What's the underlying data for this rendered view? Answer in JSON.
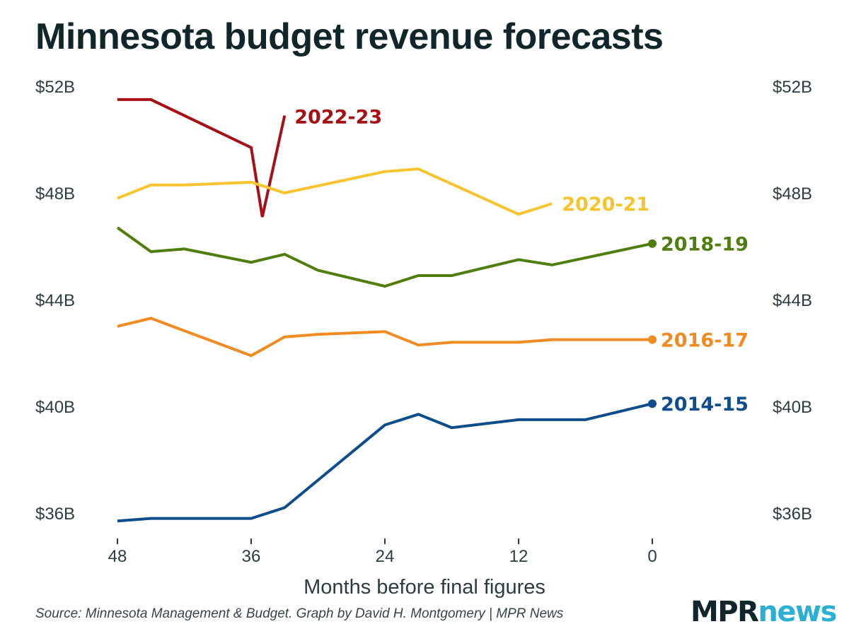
{
  "title": "Minnesota budget revenue forecasts",
  "source": "Source: Minnesota Management & Budget. Graph by David H. Montgomery | MPR News",
  "brand": {
    "part1": "MPR",
    "part2": "news"
  },
  "chart_data": {
    "type": "line",
    "title": "Minnesota budget revenue forecasts",
    "xlabel": "Months before final figures",
    "ylabel": "",
    "x_reversed": true,
    "xlim": [
      48,
      0
    ],
    "ylim": [
      36,
      52
    ],
    "x_ticks": [
      48,
      36,
      24,
      12,
      0
    ],
    "x_tick_labels": [
      "48",
      "36",
      "24",
      "12",
      "0"
    ],
    "y_ticks": [
      36,
      40,
      44,
      48,
      52
    ],
    "y_tick_labels": [
      "$36B",
      "$40B",
      "$44B",
      "$48B",
      "$52B"
    ],
    "grid": false,
    "legend": "direct labels at line ends",
    "series": [
      {
        "name": "2022-23",
        "color": "#a50f15",
        "end_marker": false,
        "x": [
          48,
          45,
          36,
          35,
          33
        ],
        "y": [
          51.5,
          51.5,
          49.7,
          47.1,
          50.9
        ]
      },
      {
        "name": "2020-21",
        "color": "#f7c42e",
        "end_marker": false,
        "x": [
          48,
          45,
          42,
          36,
          33,
          24,
          21,
          12,
          9
        ],
        "y": [
          47.8,
          48.3,
          48.3,
          48.4,
          48.0,
          48.8,
          48.9,
          47.2,
          47.6
        ]
      },
      {
        "name": "2018-19",
        "color": "#4f7d0e",
        "end_marker": true,
        "x": [
          48,
          45,
          42,
          36,
          33,
          30,
          24,
          21,
          18,
          12,
          9,
          0
        ],
        "y": [
          46.7,
          45.8,
          45.9,
          45.4,
          45.7,
          45.1,
          44.5,
          44.9,
          44.9,
          45.5,
          45.3,
          46.1
        ]
      },
      {
        "name": "2016-17",
        "color": "#f08b22",
        "end_marker": true,
        "x": [
          48,
          45,
          36,
          33,
          30,
          24,
          21,
          18,
          12,
          9,
          6,
          0
        ],
        "y": [
          43.0,
          43.3,
          41.9,
          42.6,
          42.7,
          42.8,
          42.3,
          42.4,
          42.4,
          42.5,
          42.5,
          42.5
        ]
      },
      {
        "name": "2014-15",
        "color": "#0e4d8c",
        "end_marker": true,
        "x": [
          48,
          45,
          36,
          33,
          24,
          21,
          18,
          12,
          9,
          6,
          0
        ],
        "y": [
          35.7,
          35.8,
          35.8,
          36.2,
          39.3,
          39.7,
          39.2,
          39.5,
          39.5,
          39.5,
          40.1
        ]
      }
    ]
  }
}
